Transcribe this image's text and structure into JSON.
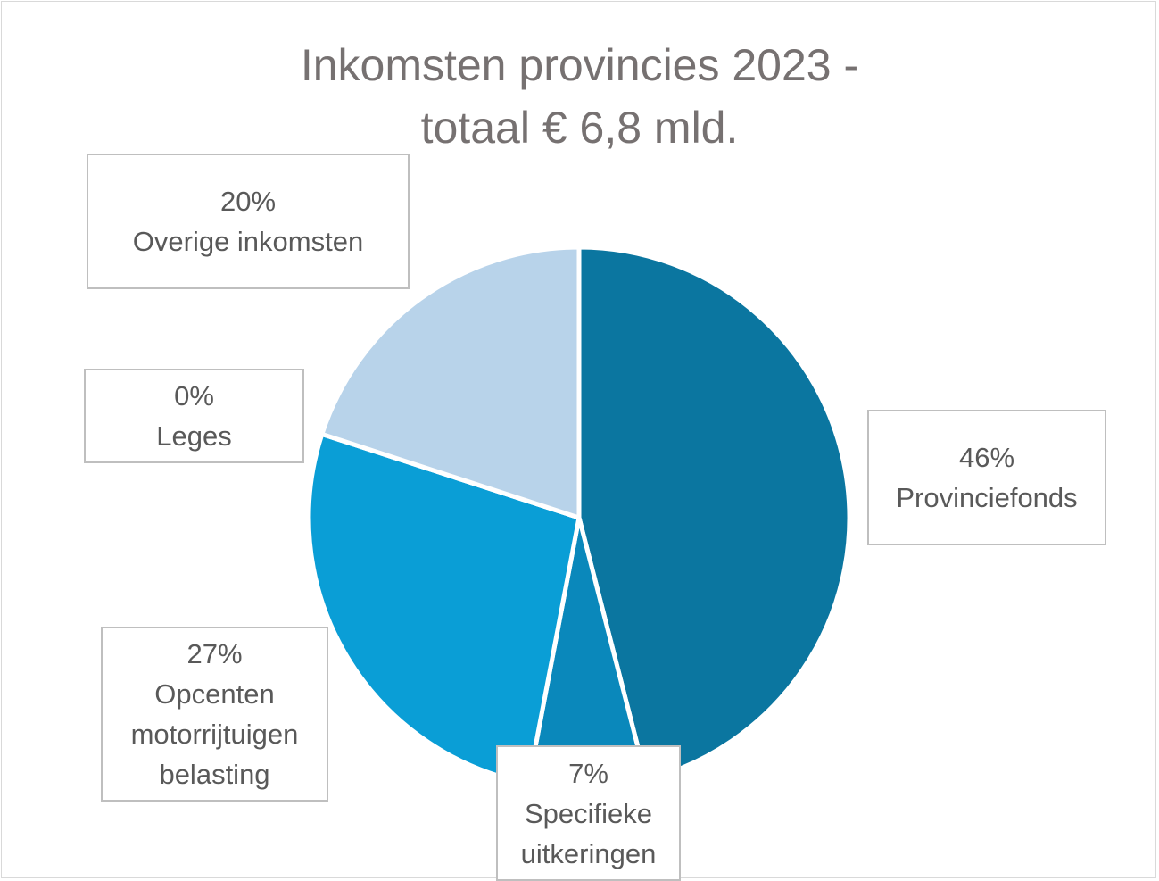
{
  "chart_data": {
    "type": "pie",
    "title_lines": [
      "Inkomsten provincies 2023 -",
      "totaal € 6,8 mld."
    ],
    "start": "top",
    "direction": "clockwise",
    "slices": [
      {
        "label": "Provinciefonds",
        "value": 46,
        "display": "46%",
        "color": "#0b76a0"
      },
      {
        "label": "Specifieke uitkeringen",
        "value": 7,
        "display": "7%",
        "color": "#0a88bb"
      },
      {
        "label": "Opcenten motorrijtuigen belasting",
        "value": 27,
        "display": "27%",
        "color": "#0a9ed6"
      },
      {
        "label": "Leges",
        "value": 0,
        "display": "0%",
        "color": "#5fb8e6"
      },
      {
        "label": "Overige inkomsten",
        "value": 20,
        "display": "20%",
        "color": "#b8d3ea"
      }
    ],
    "label_lines": [
      [
        "Provinciefonds"
      ],
      [
        "Specifieke",
        "uitkeringen"
      ],
      [
        "Opcenten",
        "motorrijtuigen",
        "belasting"
      ],
      [
        "Leges"
      ],
      [
        "Overige inkomsten"
      ]
    ],
    "legend": "none"
  }
}
